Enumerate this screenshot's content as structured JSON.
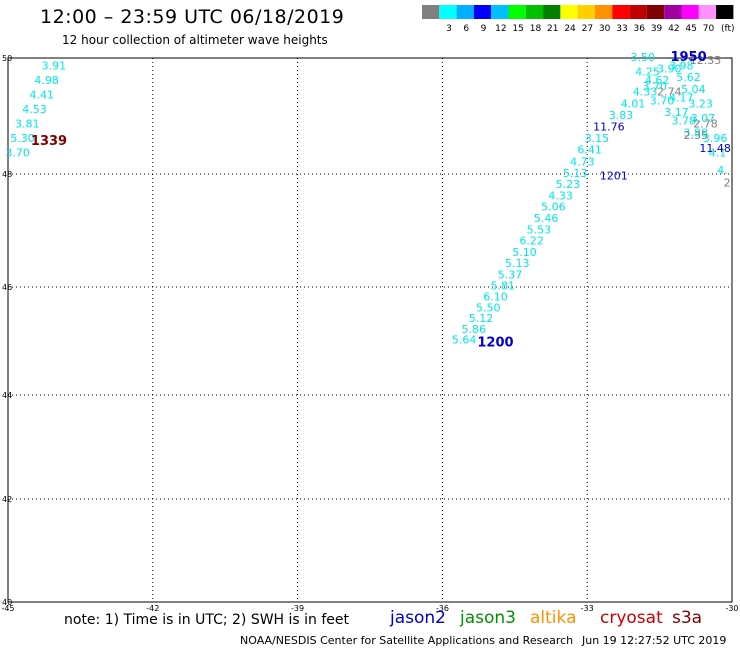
{
  "header": {
    "title": "12:00 – 23:59 UTC 06/18/2019",
    "subtitle": "12 hour collection of altimeter wave heights"
  },
  "legend": {
    "unit": "(ft)",
    "bins": [
      {
        "color": "#808080",
        "label": ""
      },
      {
        "color": "#00ffff",
        "label": "3"
      },
      {
        "color": "#00b0ff",
        "label": "6"
      },
      {
        "color": "#0000ff",
        "label": "9"
      },
      {
        "color": "#00c0ff",
        "label": "12"
      },
      {
        "color": "#00ff00",
        "label": "15"
      },
      {
        "color": "#00c000",
        "label": "18"
      },
      {
        "color": "#008000",
        "label": "21"
      },
      {
        "color": "#ffff00",
        "label": "24"
      },
      {
        "color": "#ffd000",
        "label": "27"
      },
      {
        "color": "#ff9000",
        "label": "30"
      },
      {
        "color": "#ff0000",
        "label": "33"
      },
      {
        "color": "#c00000",
        "label": "36"
      },
      {
        "color": "#800000",
        "label": "39"
      },
      {
        "color": "#a000a0",
        "label": "42"
      },
      {
        "color": "#ff00ff",
        "label": "45"
      },
      {
        "color": "#ff90ff",
        "label": "70"
      },
      {
        "color": "#000000",
        "label": "(ft)"
      }
    ]
  },
  "map": {
    "lon_ticks": [
      "-45",
      "-42",
      "-39",
      "-36",
      "-33",
      "-30"
    ],
    "lat_ticks": [
      "50",
      "48",
      "46",
      "44",
      "42",
      "40"
    ],
    "lon_range": [
      -45,
      -30
    ],
    "lat_range": [
      40,
      50
    ]
  },
  "tracks": [
    {
      "name": "west-track",
      "color": "#00e8e8",
      "time_label": {
        "text": "1339",
        "color": "#800000",
        "lon": -44.15,
        "lat": 48.5
      },
      "points": [
        {
          "lon": -44.05,
          "lat": 49.8,
          "swh": "3.91"
        },
        {
          "lon": -44.2,
          "lat": 49.55,
          "swh": "4.98"
        },
        {
          "lon": -44.3,
          "lat": 49.3,
          "swh": "4.41"
        },
        {
          "lon": -44.45,
          "lat": 49.05,
          "swh": "4.53"
        },
        {
          "lon": -44.6,
          "lat": 48.8,
          "swh": "3.81"
        },
        {
          "lon": -44.7,
          "lat": 48.55,
          "swh": "5.30"
        },
        {
          "lon": -44.8,
          "lat": 48.3,
          "swh": "3.70"
        }
      ]
    },
    {
      "name": "east-track",
      "color": "#00e8e8",
      "time_label": {
        "text": "1200",
        "color": "#0000cc",
        "lon": -34.9,
        "lat": 44.9
      },
      "points": [
        {
          "lon": -35.55,
          "lat": 44.95,
          "swh": "5.64"
        },
        {
          "lon": -35.35,
          "lat": 45.15,
          "swh": "5.86"
        },
        {
          "lon": -35.2,
          "lat": 45.35,
          "swh": "5.12"
        },
        {
          "lon": -35.05,
          "lat": 45.55,
          "swh": "5.50"
        },
        {
          "lon": -34.9,
          "lat": 45.75,
          "swh": "6.10"
        },
        {
          "lon": -34.75,
          "lat": 45.95,
          "swh": "5.81"
        },
        {
          "lon": -34.6,
          "lat": 46.15,
          "swh": "5.37"
        },
        {
          "lon": -34.45,
          "lat": 46.35,
          "swh": "5.13"
        },
        {
          "lon": -34.3,
          "lat": 46.55,
          "swh": "5.10"
        },
        {
          "lon": -34.15,
          "lat": 46.75,
          "swh": "6.22"
        },
        {
          "lon": -34.0,
          "lat": 46.95,
          "swh": "5.53"
        },
        {
          "lon": -33.85,
          "lat": 47.15,
          "swh": "5.46"
        },
        {
          "lon": -33.7,
          "lat": 47.35,
          "swh": "5.06"
        },
        {
          "lon": -33.55,
          "lat": 47.55,
          "swh": "4.33"
        },
        {
          "lon": -33.4,
          "lat": 47.75,
          "swh": "5.23"
        },
        {
          "lon": -33.25,
          "lat": 47.95,
          "swh": "5.13"
        },
        {
          "lon": -33.1,
          "lat": 48.15,
          "swh": "4.73"
        },
        {
          "lon": -32.95,
          "lat": 48.35,
          "swh": "6.41"
        },
        {
          "lon": -32.8,
          "lat": 48.55,
          "swh": "3.15"
        },
        {
          "lon": -32.55,
          "lat": 48.75,
          "swh": "11.76",
          "color": "#0000cc"
        },
        {
          "lon": -32.3,
          "lat": 48.95,
          "swh": "3.83"
        },
        {
          "lon": -32.05,
          "lat": 49.15,
          "swh": "4.01"
        },
        {
          "lon": -31.8,
          "lat": 49.35,
          "swh": "4.33"
        },
        {
          "lon": -31.55,
          "lat": 49.55,
          "swh": "4.62"
        },
        {
          "lon": -31.3,
          "lat": 49.75,
          "swh": "3.90"
        }
      ],
      "extra_labels": [
        {
          "text": "1201",
          "color": "#0000cc",
          "lon": -32.45,
          "lat": 47.9
        }
      ]
    },
    {
      "name": "north-track",
      "color": "#00e8e8",
      "time_label": {
        "text": "1950",
        "color": "#0000cc",
        "lon": -30.9,
        "lat": 49.95
      },
      "points": [
        {
          "lon": -31.85,
          "lat": 49.95,
          "swh": "3.50"
        },
        {
          "lon": -31.75,
          "lat": 49.7,
          "swh": "4.25"
        },
        {
          "lon": -31.6,
          "lat": 49.45,
          "swh": "3.70"
        },
        {
          "lon": -31.45,
          "lat": 49.2,
          "swh": "3.70"
        },
        {
          "lon": -31.05,
          "lat": 49.8,
          "swh": "3.98"
        },
        {
          "lon": -30.9,
          "lat": 49.6,
          "swh": "5.62"
        },
        {
          "lon": -30.8,
          "lat": 49.4,
          "swh": "5.04"
        },
        {
          "lon": -30.65,
          "lat": 49.15,
          "swh": "3.23"
        },
        {
          "lon": -30.6,
          "lat": 48.9,
          "swh": "3.07"
        },
        {
          "lon": -31.05,
          "lat": 49.25,
          "swh": "4.17"
        },
        {
          "lon": -31.15,
          "lat": 49.0,
          "swh": "3.17"
        },
        {
          "lon": -31.0,
          "lat": 48.85,
          "swh": "3.78"
        },
        {
          "lon": -30.75,
          "lat": 48.65,
          "swh": "3.88"
        },
        {
          "lon": -30.35,
          "lat": 48.55,
          "swh": "3.96"
        },
        {
          "lon": -30.3,
          "lat": 48.3,
          "swh": "4.1"
        },
        {
          "lon": -30.2,
          "lat": 48.0,
          "swh": "4."
        }
      ],
      "extra_labels": [
        {
          "text": "12.35",
          "color": "#808080",
          "lon": -30.55,
          "lat": 49.9
        },
        {
          "text": "2.74",
          "color": "#808080",
          "lon": -31.3,
          "lat": 49.35
        },
        {
          "text": "2.78",
          "color": "#808080",
          "lon": -30.55,
          "lat": 48.8
        },
        {
          "text": "2.35",
          "color": "#808080",
          "lon": -30.75,
          "lat": 48.6
        },
        {
          "text": "11.48",
          "color": "#0000cc",
          "lon": -30.35,
          "lat": 48.38
        },
        {
          "text": "2",
          "color": "#808080",
          "lon": -30.1,
          "lat": 47.78
        }
      ]
    }
  ],
  "footer": {
    "note": "note: 1) Time is in UTC; 2) SWH is in feet",
    "satellites": [
      {
        "name": "jason2",
        "color": "#0000cc"
      },
      {
        "name": "jason3",
        "color": "#009000"
      },
      {
        "name": "altika",
        "color": "#ff9000"
      },
      {
        "name": "cryosat",
        "color": "#cc0000"
      },
      {
        "name": "s3a",
        "color": "#800000"
      }
    ],
    "credit": "NOAA/NESDIS Center for Satellite Applications and Research",
    "timestamp": "Jun 19 12:27:52 UTC 2019"
  }
}
